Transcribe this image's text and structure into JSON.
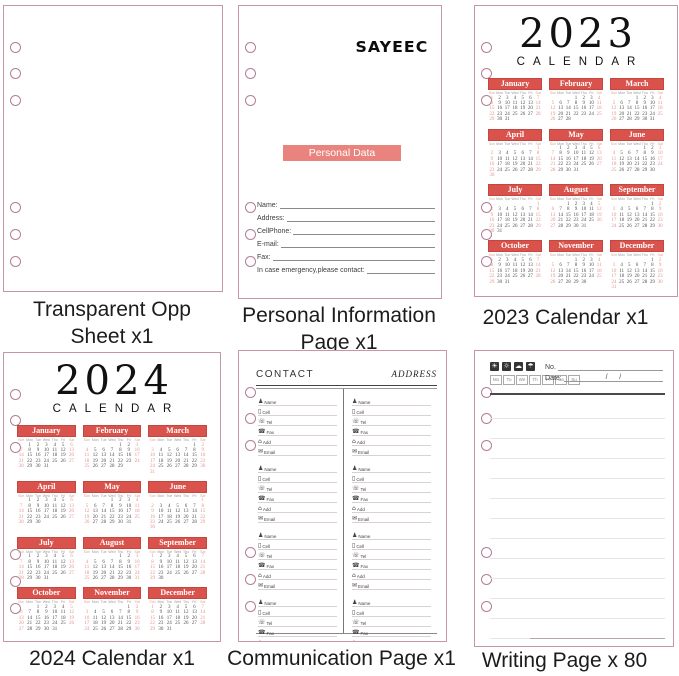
{
  "colors": {
    "page_border": "#c795aa",
    "hole_border": "#b27e96",
    "month_header_red": "#d9534c",
    "banner_red": "#e9837e",
    "weekend_red": "#e0968c",
    "caption_text": "#1c1c1c"
  },
  "pages": {
    "transparent": {
      "caption": [
        "Transparent Opp",
        "Sheet x1"
      ]
    },
    "personal": {
      "brand": "SAYEEC",
      "banner": "Personal Data",
      "fields": [
        "Name:",
        "Address:",
        "CellPhone:",
        "E-mail:",
        "Fax:",
        "In case emergency,please contact:"
      ],
      "caption": [
        "Personal Information",
        "Page x1"
      ]
    },
    "calendar2023": {
      "year": "2023",
      "subtitle": "CALENDAR",
      "caption": [
        "2023 Calendar x1"
      ],
      "day_headers": [
        "Sun",
        "Mon",
        "Tue",
        "Wed",
        "Thu",
        "Fri",
        "Sat"
      ],
      "months": [
        {
          "name": "January",
          "start": 0,
          "days": 31
        },
        {
          "name": "February",
          "start": 3,
          "days": 28
        },
        {
          "name": "March",
          "start": 3,
          "days": 31
        },
        {
          "name": "April",
          "start": 6,
          "days": 30
        },
        {
          "name": "May",
          "start": 1,
          "days": 31
        },
        {
          "name": "June",
          "start": 4,
          "days": 30
        },
        {
          "name": "July",
          "start": 6,
          "days": 31
        },
        {
          "name": "August",
          "start": 2,
          "days": 31
        },
        {
          "name": "September",
          "start": 5,
          "days": 30
        },
        {
          "name": "October",
          "start": 0,
          "days": 31
        },
        {
          "name": "November",
          "start": 3,
          "days": 30
        },
        {
          "name": "December",
          "start": 5,
          "days": 31
        }
      ]
    },
    "calendar2024": {
      "year": "2024",
      "subtitle": "CALENDAR",
      "caption": [
        "2024 Calendar x1"
      ],
      "day_headers": [
        "Sun",
        "Mon",
        "Tue",
        "Wed",
        "Thu",
        "Fri",
        "Sat"
      ],
      "months": [
        {
          "name": "January",
          "start": 1,
          "days": 31
        },
        {
          "name": "February",
          "start": 4,
          "days": 29
        },
        {
          "name": "March",
          "start": 5,
          "days": 31
        },
        {
          "name": "April",
          "start": 1,
          "days": 30
        },
        {
          "name": "May",
          "start": 3,
          "days": 31
        },
        {
          "name": "June",
          "start": 6,
          "days": 30
        },
        {
          "name": "July",
          "start": 1,
          "days": 31
        },
        {
          "name": "August",
          "start": 4,
          "days": 31
        },
        {
          "name": "September",
          "start": 0,
          "days": 30
        },
        {
          "name": "October",
          "start": 2,
          "days": 31
        },
        {
          "name": "November",
          "start": 5,
          "days": 30
        },
        {
          "name": "December",
          "start": 0,
          "days": 31
        }
      ]
    },
    "communication": {
      "header_left": "CONTACT",
      "header_right": "ADDRESS",
      "columns": 2,
      "blocks_per_column": 4,
      "rows": [
        {
          "icon": "person-icon",
          "glyph": "♟",
          "label": "Name"
        },
        {
          "icon": "mobile-phone-icon",
          "glyph": "▯",
          "label": "Cell"
        },
        {
          "icon": "telephone-icon",
          "glyph": "☏",
          "label": "Tel"
        },
        {
          "icon": "fax-icon",
          "glyph": "☎",
          "label": "Fax"
        },
        {
          "icon": "address-icon",
          "glyph": "⌂",
          "label": "Add"
        },
        {
          "icon": "email-icon",
          "glyph": "✉",
          "label": "Email"
        }
      ],
      "caption": [
        "Communication Page x1"
      ]
    },
    "writing": {
      "weather_icons": [
        {
          "icon": "sun-icon",
          "glyph": "☀"
        },
        {
          "icon": "sun-cloud-icon",
          "glyph": "☼"
        },
        {
          "icon": "cloud-icon",
          "glyph": "☁"
        },
        {
          "icon": "umbrella-icon",
          "glyph": "☂"
        }
      ],
      "day_boxes": [
        "Mo",
        "Tu",
        "We",
        "Th",
        "Fr",
        "Sa",
        "Su"
      ],
      "no_label": "No.",
      "date_label": "Date:",
      "date_slashes": "/      /",
      "ruled_line_count": 12,
      "caption": [
        "Writing Page x 80"
      ]
    }
  }
}
